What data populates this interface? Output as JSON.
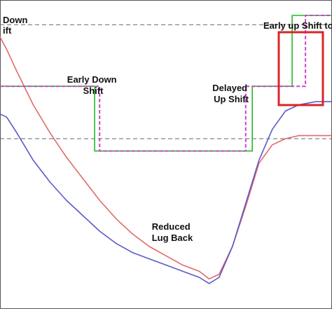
{
  "chart_data": {
    "type": "line",
    "title": "",
    "xlabel": "",
    "ylabel": "",
    "grid": false,
    "reference_lines": [
      {
        "y": 0.92
      },
      {
        "y": 0.55
      }
    ],
    "highlight_box": {
      "color": "#d62728"
    },
    "series": [
      {
        "color": "#e06a6a",
        "style": "solid",
        "points": [
          [
            0.0,
            0.88
          ],
          [
            0.02,
            0.84
          ],
          [
            0.05,
            0.77
          ],
          [
            0.1,
            0.66
          ],
          [
            0.15,
            0.57
          ],
          [
            0.2,
            0.49
          ],
          [
            0.25,
            0.42
          ],
          [
            0.3,
            0.35
          ],
          [
            0.35,
            0.29
          ],
          [
            0.4,
            0.24
          ],
          [
            0.45,
            0.2
          ],
          [
            0.5,
            0.17
          ],
          [
            0.55,
            0.14
          ],
          [
            0.6,
            0.12
          ],
          [
            0.63,
            0.095
          ],
          [
            0.66,
            0.11
          ],
          [
            0.7,
            0.2
          ],
          [
            0.74,
            0.33
          ],
          [
            0.78,
            0.47
          ],
          [
            0.82,
            0.53
          ],
          [
            0.86,
            0.55
          ],
          [
            0.9,
            0.56
          ],
          [
            0.95,
            0.56
          ],
          [
            1.0,
            0.56
          ]
        ]
      },
      {
        "color": "#5a5ac8",
        "style": "solid",
        "points": [
          [
            0.0,
            0.63
          ],
          [
            0.02,
            0.62
          ],
          [
            0.05,
            0.57
          ],
          [
            0.1,
            0.48
          ],
          [
            0.15,
            0.41
          ],
          [
            0.2,
            0.35
          ],
          [
            0.25,
            0.3
          ],
          [
            0.3,
            0.25
          ],
          [
            0.35,
            0.21
          ],
          [
            0.4,
            0.18
          ],
          [
            0.45,
            0.16
          ],
          [
            0.5,
            0.14
          ],
          [
            0.55,
            0.12
          ],
          [
            0.6,
            0.1
          ],
          [
            0.63,
            0.08
          ],
          [
            0.66,
            0.1
          ],
          [
            0.7,
            0.2
          ],
          [
            0.74,
            0.34
          ],
          [
            0.78,
            0.48
          ],
          [
            0.82,
            0.58
          ],
          [
            0.86,
            0.64
          ],
          [
            0.9,
            0.66
          ],
          [
            0.95,
            0.67
          ],
          [
            1.0,
            0.67
          ]
        ]
      },
      {
        "color": "#22bb22",
        "style": "solid",
        "points": [
          [
            0.0,
            0.72
          ],
          [
            0.285,
            0.72
          ],
          [
            0.285,
            0.51
          ],
          [
            0.76,
            0.51
          ],
          [
            0.76,
            0.72
          ],
          [
            0.83,
            0.72
          ],
          [
            0.83,
            0.72
          ],
          [
            0.88,
            0.72
          ],
          [
            0.88,
            0.95
          ],
          [
            1.0,
            0.95
          ]
        ]
      },
      {
        "color": "#cc44cc",
        "style": "dashed",
        "points": [
          [
            0.0,
            0.72
          ],
          [
            0.3,
            0.72
          ],
          [
            0.3,
            0.51
          ],
          [
            0.74,
            0.51
          ],
          [
            0.74,
            0.72
          ],
          [
            0.92,
            0.72
          ],
          [
            0.92,
            0.95
          ],
          [
            1.0,
            0.95
          ]
        ]
      }
    ],
    "annotations": [
      {
        "lines": [
          "Down",
          "ift"
        ]
      },
      {
        "lines": [
          "Early Down",
          "Shift"
        ]
      },
      {
        "lines": [
          "Delayed",
          "Up Shift"
        ]
      },
      {
        "lines": [
          "Early up Shift to"
        ]
      },
      {
        "lines": [
          "Reduced",
          "Lug Back"
        ]
      }
    ]
  }
}
